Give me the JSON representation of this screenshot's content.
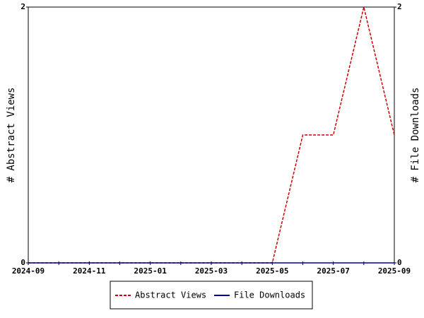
{
  "chart_data": {
    "type": "line",
    "categories": [
      "2024-09",
      null,
      "2024-11",
      null,
      "2025-01",
      null,
      "2025-03",
      null,
      "2025-05",
      null,
      "2025-07",
      null,
      "2025-09"
    ],
    "series": [
      {
        "name": "Abstract Views",
        "color": "#cc0000",
        "dashed": true,
        "values": [
          0,
          0,
          0,
          0,
          0,
          0,
          0,
          0,
          0,
          1,
          1,
          2,
          1
        ]
      },
      {
        "name": "File Downloads",
        "color": "#000099",
        "dashed": false,
        "axis": "y2",
        "values": [
          0,
          0,
          0,
          0,
          0,
          0,
          0,
          0,
          0,
          0,
          0,
          0,
          0
        ]
      }
    ],
    "ylabel": "# Abstract Views",
    "y2label": "# File Downloads",
    "ylim": [
      0,
      2
    ],
    "yticks": [
      0,
      2
    ],
    "y2lim": [
      0,
      2
    ],
    "y2ticks": [
      0,
      2
    ],
    "grid": false,
    "legend": "bottom"
  }
}
